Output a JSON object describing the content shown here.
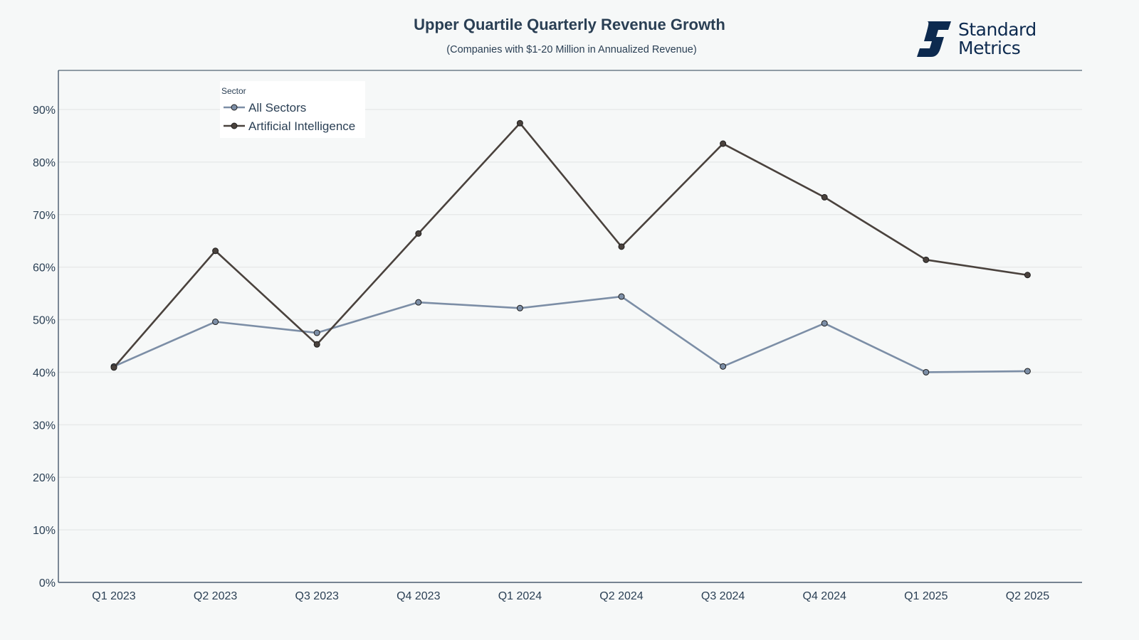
{
  "header": {
    "title": "Upper Quartile Quarterly Revenue Growth",
    "subtitle": "(Companies with $1-20 Million in Annualized Revenue)"
  },
  "logo": {
    "line1": "Standard",
    "line2": "Metrics",
    "icon": "standard-metrics-logo-icon",
    "color": "#0d2a4f"
  },
  "chart_data": {
    "type": "line",
    "title": "Upper Quartile Quarterly Revenue Growth",
    "subtitle": "(Companies with $1-20 Million in Annualized Revenue)",
    "xlabel": "",
    "ylabel": "",
    "categories": [
      "Q1 2023",
      "Q2 2023",
      "Q3 2023",
      "Q4 2023",
      "Q1 2024",
      "Q2 2024",
      "Q3 2024",
      "Q4 2024",
      "Q1 2025",
      "Q2 2025"
    ],
    "ylim": [
      0,
      97
    ],
    "yticks": [
      0,
      10,
      20,
      30,
      40,
      50,
      60,
      70,
      80,
      90
    ],
    "ytick_labels": [
      "0%",
      "10%",
      "20%",
      "30%",
      "40%",
      "50%",
      "60%",
      "70%",
      "80%",
      "90%"
    ],
    "grid": true,
    "legend": {
      "title": "Sector",
      "position": "top-left"
    },
    "series": [
      {
        "name": "All Sectors",
        "color": "#7c8ea6",
        "values": [
          41.1,
          49.6,
          47.5,
          53.3,
          52.2,
          54.4,
          41.1,
          49.3,
          40.0,
          40.2
        ]
      },
      {
        "name": "Artificial Intelligence",
        "color": "#4a423d",
        "values": [
          40.9,
          63.1,
          45.3,
          66.4,
          87.4,
          63.9,
          83.5,
          73.3,
          61.4,
          58.5
        ]
      }
    ]
  }
}
